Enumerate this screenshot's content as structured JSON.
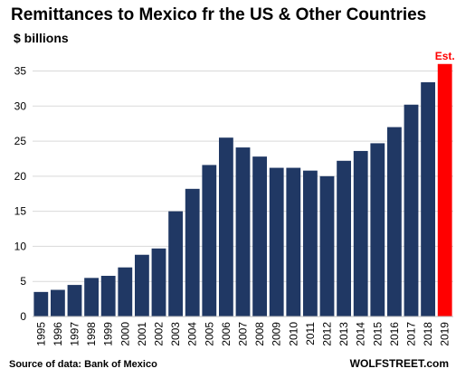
{
  "chart_data": {
    "type": "bar",
    "title": "Remittances to Mexico fr the US & Other Countries",
    "ylabel": "$ billions",
    "xlabel": "",
    "categories": [
      "1995",
      "1996",
      "1997",
      "1998",
      "1999",
      "2000",
      "2001",
      "2002",
      "2003",
      "2004",
      "2005",
      "2006",
      "2007",
      "2008",
      "2009",
      "2010",
      "2011",
      "2012",
      "2013",
      "2014",
      "2015",
      "2016",
      "2017",
      "2018",
      "2019"
    ],
    "values": [
      3.5,
      3.8,
      4.5,
      5.5,
      5.8,
      7.0,
      8.8,
      9.7,
      15.0,
      18.2,
      21.6,
      25.5,
      24.1,
      22.8,
      21.2,
      21.2,
      20.8,
      20.0,
      22.2,
      23.6,
      24.7,
      27.0,
      30.2,
      33.4,
      36.0
    ],
    "yticks": [
      0,
      5,
      10,
      15,
      20,
      25,
      30,
      35
    ],
    "ylim": [
      0,
      37
    ],
    "grid": true,
    "highlight_index": 24,
    "highlight_label": "Est.",
    "colors": {
      "bar": "#203864",
      "highlight": "#ff0000",
      "grid": "#d9d9d9"
    }
  },
  "footer": {
    "source": "Source of data: Bank of Mexico",
    "brand": "WOLFSTREET.com"
  }
}
